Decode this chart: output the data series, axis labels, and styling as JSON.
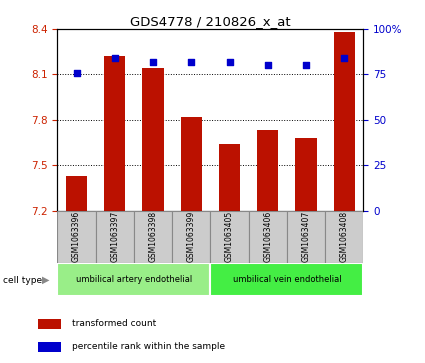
{
  "title": "GDS4778 / 210826_x_at",
  "samples": [
    "GSM1063396",
    "GSM1063397",
    "GSM1063398",
    "GSM1063399",
    "GSM1063405",
    "GSM1063406",
    "GSM1063407",
    "GSM1063408"
  ],
  "bar_values": [
    7.43,
    8.22,
    8.14,
    7.82,
    7.64,
    7.73,
    7.68,
    8.38
  ],
  "dot_values": [
    76,
    84,
    82,
    82,
    82,
    80,
    80,
    84
  ],
  "bar_color": "#bb1100",
  "dot_color": "#0000cc",
  "ylim_left": [
    7.2,
    8.4
  ],
  "ylim_right": [
    0,
    100
  ],
  "yticks_left": [
    7.2,
    7.5,
    7.8,
    8.1,
    8.4
  ],
  "yticks_right": [
    0,
    25,
    50,
    75,
    100
  ],
  "ytick_labels_right": [
    "0",
    "25",
    "50",
    "75",
    "100%"
  ],
  "grid_vals": [
    7.5,
    7.8,
    8.1
  ],
  "cell_type_groups": [
    {
      "label": "umbilical artery endothelial",
      "start": 0,
      "end": 4,
      "color": "#99ee88"
    },
    {
      "label": "umbilical vein endothelial",
      "start": 4,
      "end": 8,
      "color": "#44ee44"
    }
  ],
  "legend_items": [
    {
      "label": "transformed count",
      "color": "#bb1100"
    },
    {
      "label": "percentile rank within the sample",
      "color": "#0000cc"
    }
  ],
  "cell_type_label": "cell type",
  "bar_width": 0.55,
  "left_tick_color": "#cc2200",
  "right_tick_color": "#0000cc",
  "sample_box_color": "#cccccc",
  "sample_box_edge": "#888888"
}
